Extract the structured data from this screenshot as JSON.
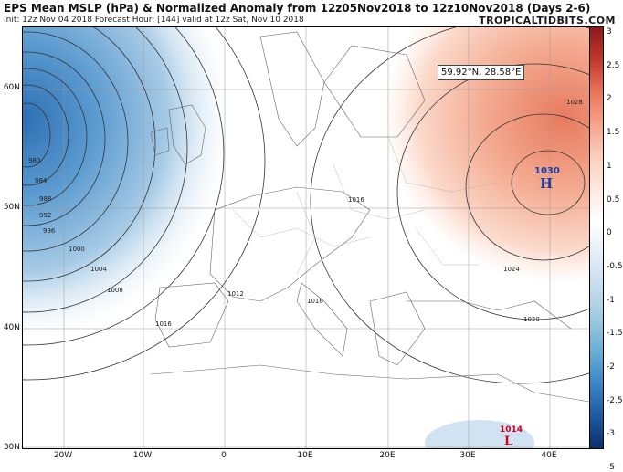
{
  "header": {
    "title": "EPS Mean MSLP (hPa) & Normalized Anomaly from 12z05Nov2018 to 12z10Nov2018 (Days 2-6)",
    "subtitle": "Init: 12z Nov 04 2018   Forecast Hour: [144]   valid at 12z Sat, Nov 10 2018",
    "brand": "TROPICALTIDBITS.COM"
  },
  "map": {
    "tooltip": "59.92°N, 28.58°E",
    "high": {
      "value": "1030",
      "symbol": "H"
    },
    "low": {
      "value": "1014",
      "symbol": "L"
    },
    "isobar_labels": [
      "980",
      "984",
      "988",
      "992",
      "996",
      "1000",
      "1004",
      "1008",
      "1012",
      "1016",
      "1016",
      "1016",
      "1020",
      "1024",
      "1028"
    ],
    "lat_labels": [
      "60N",
      "50N",
      "40N",
      "30N"
    ],
    "lon_labels": [
      "20W",
      "10W",
      "0",
      "10E",
      "20E",
      "30E",
      "40E"
    ]
  },
  "colorbar": {
    "ticks": [
      "3",
      "2.5",
      "2",
      "1.5",
      "1",
      "0.5",
      "0",
      "-0.5",
      "-1",
      "-1.5",
      "-2",
      "-2.5",
      "-3",
      "-5"
    ],
    "colors": [
      "#8b1a1a",
      "#c0392b",
      "#e8765c",
      "#f5a58a",
      "#fbd0bd",
      "#fde9e0",
      "#ffffff",
      "#e3eef7",
      "#c6dcef",
      "#9ecae1",
      "#6baed6",
      "#3d85c6",
      "#1f5a9e",
      "#0b2f6b"
    ]
  },
  "colors": {
    "high": "#1c3ea8",
    "low": "#d0001a"
  }
}
